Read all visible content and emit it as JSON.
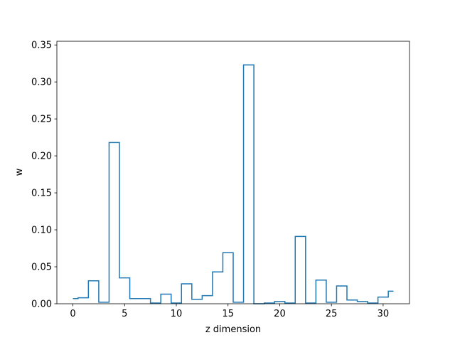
{
  "chart_data": {
    "type": "step",
    "xlabel": "z dimension",
    "ylabel": "w",
    "xlim": [
      -1.55,
      32.55
    ],
    "ylim": [
      0,
      0.355
    ],
    "xticks": [
      0,
      5,
      10,
      15,
      20,
      25,
      30
    ],
    "xtick_labels": [
      "0",
      "5",
      "10",
      "15",
      "20",
      "25",
      "30"
    ],
    "yticks": [
      0.0,
      0.05,
      0.1,
      0.15,
      0.2,
      0.25,
      0.3,
      0.35
    ],
    "ytick_labels": [
      "0.00",
      "0.05",
      "0.10",
      "0.15",
      "0.20",
      "0.25",
      "0.30",
      "0.35"
    ],
    "grid": false,
    "line_color": "#1f77b4",
    "series": [
      {
        "x": [
          0,
          1,
          2,
          3,
          4,
          5,
          6,
          7,
          8,
          9,
          10,
          11,
          12,
          13,
          14,
          15,
          16,
          17,
          18,
          19,
          20,
          21,
          22,
          23,
          24,
          25,
          26,
          27,
          28,
          29,
          30,
          31
        ],
        "values": [
          0.007,
          0.008,
          0.031,
          0.002,
          0.218,
          0.035,
          0.007,
          0.007,
          0.001,
          0.013,
          0.001,
          0.027,
          0.006,
          0.011,
          0.043,
          0.069,
          0.002,
          0.323,
          0.0,
          0.001,
          0.003,
          0.001,
          0.091,
          0.001,
          0.032,
          0.002,
          0.024,
          0.005,
          0.003,
          0.001,
          0.009,
          0.017
        ]
      }
    ]
  }
}
